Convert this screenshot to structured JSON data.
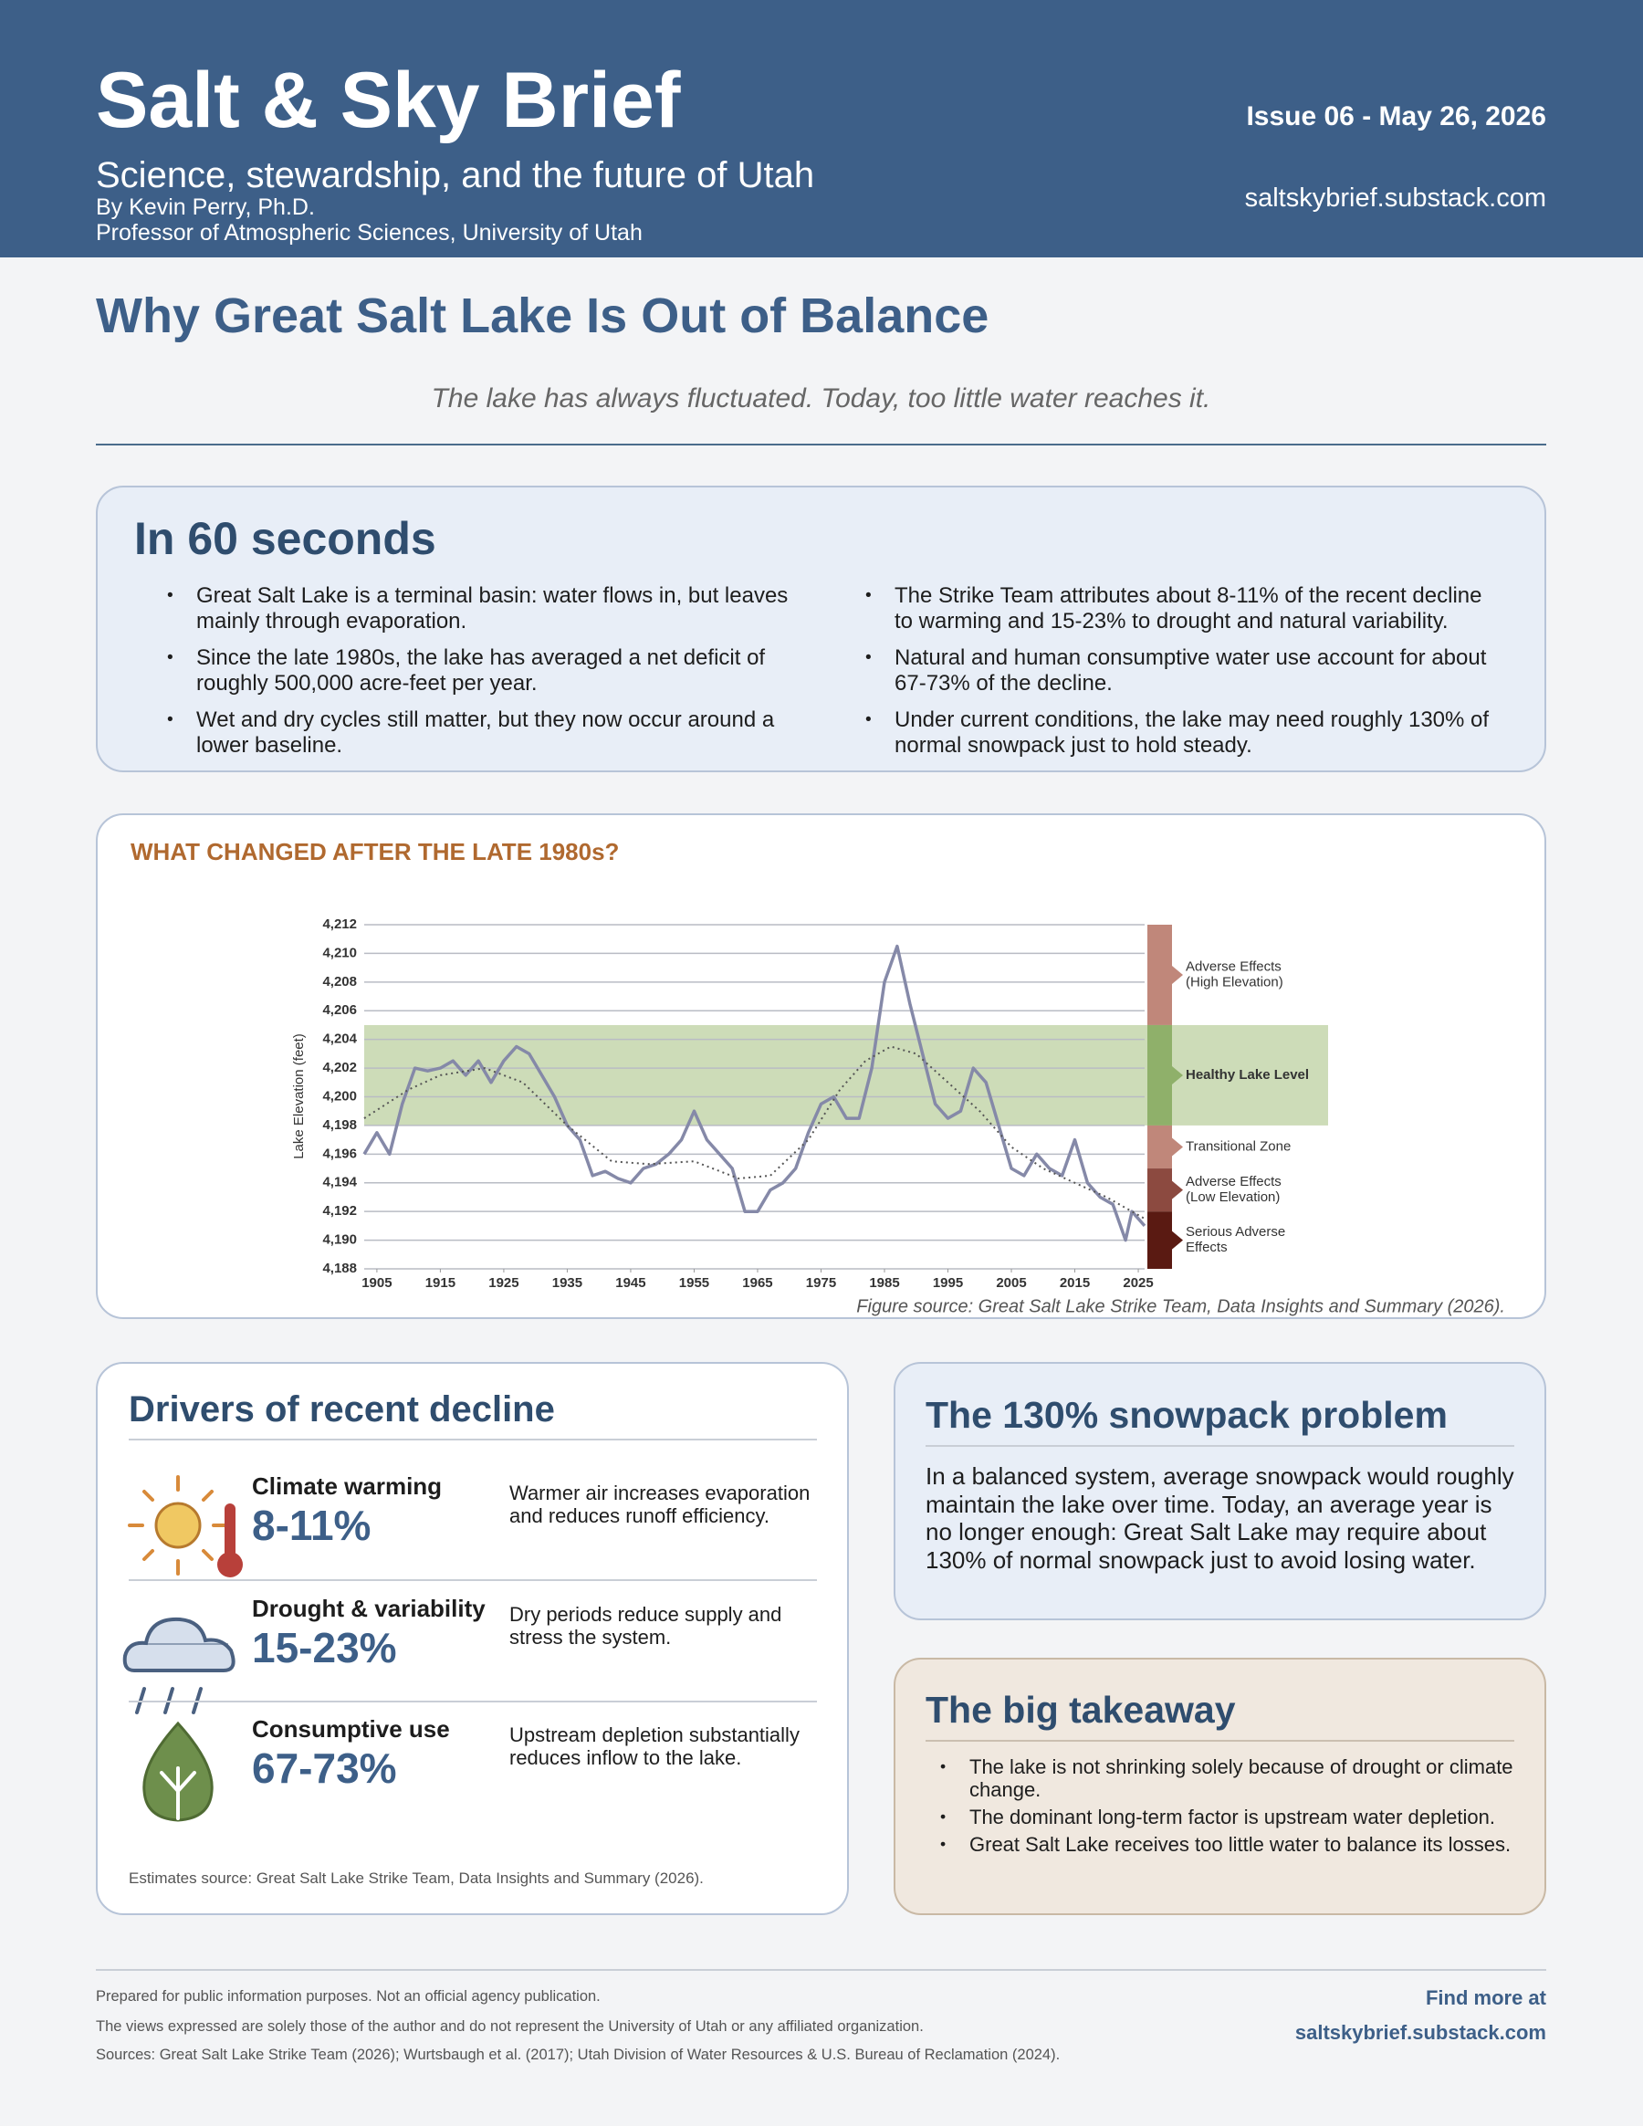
{
  "header": {
    "title": "Salt & Sky Brief",
    "subtitle": "Science, stewardship, and the future of Utah",
    "byline": "By Kevin Perry, Ph.D.",
    "affiliation": "Professor of Atmospheric Sciences, University of Utah",
    "issue": "Issue 06 - May 26, 2026",
    "url": "saltskybrief.substack.com"
  },
  "headline": "Why Great Salt Lake Is Out of Balance",
  "tagline": "The lake has always fluctuated. Today, too little water reaches it.",
  "summary": {
    "title": "In 60 seconds",
    "bullets": [
      "Great Salt Lake is a terminal basin: water flows in, but leaves mainly through evaporation.",
      "Since the late 1980s, the lake has averaged a net deficit of roughly 500,000 acre-feet per year.",
      "Wet and dry cycles still matter, but they now occur around a lower baseline.",
      "The Strike Team attributes about 8-11% of the recent decline to warming and 15-23% to drought and natural variability.",
      "Natural and human consumptive water use account for about 67-73% of the decline.",
      "Under current conditions, the lake may need roughly 130% of normal snowpack just to hold steady."
    ]
  },
  "figure": {
    "type": "line",
    "title": "WHAT CHANGED AFTER THE LATE 1980s?",
    "ylabel": "Lake Elevation (feet)",
    "source": "Figure source: Great Salt Lake Strike Team, Data Insights and Summary (2026).",
    "xlim": [
      1903,
      2026
    ],
    "ylim": [
      4188,
      4212
    ],
    "xticks": [
      1905,
      1915,
      1925,
      1935,
      1945,
      1955,
      1965,
      1975,
      1985,
      1995,
      2005,
      2015,
      2025
    ],
    "yticks": [
      {
        "value": 4188,
        "label": "4,188"
      },
      {
        "value": 4190,
        "label": "4,190"
      },
      {
        "value": 4192,
        "label": "4,192"
      },
      {
        "value": 4194,
        "label": "4,194"
      },
      {
        "value": 4196,
        "label": "4,196"
      },
      {
        "value": 4198,
        "label": "4,198"
      },
      {
        "value": 4200,
        "label": "4,200"
      },
      {
        "value": 4202,
        "label": "4,202"
      },
      {
        "value": 4204,
        "label": "4,204"
      },
      {
        "value": 4206,
        "label": "4,206"
      },
      {
        "value": 4208,
        "label": "4,208"
      },
      {
        "value": 4210,
        "label": "4,210"
      },
      {
        "value": 4212,
        "label": "4,212"
      }
    ],
    "grid": true,
    "series": [
      {
        "color": "#8589a8",
        "style": "solid",
        "x": [
          1903,
          1905,
          1907,
          1909,
          1911,
          1913,
          1915,
          1917,
          1919,
          1921,
          1923,
          1925,
          1927,
          1929,
          1931,
          1933,
          1935,
          1937,
          1939,
          1941,
          1943,
          1945,
          1947,
          1949,
          1951,
          1953,
          1955,
          1957,
          1959,
          1961,
          1963,
          1965,
          1967,
          1969,
          1971,
          1973,
          1975,
          1977,
          1979,
          1981,
          1983,
          1985,
          1987,
          1989,
          1991,
          1993,
          1995,
          1997,
          1999,
          2001,
          2003,
          2005,
          2007,
          2009,
          2011,
          2013,
          2015,
          2017,
          2019,
          2021,
          2023,
          2024,
          2026
        ],
        "values": [
          4196,
          4197.5,
          4196,
          4199.5,
          4202,
          4201.8,
          4202,
          4202.5,
          4201.5,
          4202.5,
          4201,
          4202.5,
          4203.5,
          4203,
          4201.5,
          4200,
          4198,
          4197,
          4194.5,
          4194.8,
          4194.3,
          4194,
          4195,
          4195.3,
          4196,
          4197,
          4199,
          4197,
          4196,
          4195,
          4192,
          4192,
          4193.5,
          4194,
          4195,
          4197.5,
          4199.5,
          4200,
          4198.5,
          4198.5,
          4202,
          4208,
          4210.5,
          4206.5,
          4203,
          4199.5,
          4198.5,
          4199,
          4202,
          4201,
          4198,
          4195,
          4194.5,
          4196,
          4195,
          4194.5,
          4197,
          4194,
          4193,
          4192.5,
          4190,
          4192,
          4191
        ]
      },
      {
        "color": "#555555",
        "style": "dotted",
        "x": [
          1903,
          1910,
          1915,
          1922,
          1928,
          1935,
          1942,
          1948,
          1955,
          1962,
          1967,
          1973,
          1978,
          1982,
          1986,
          1990,
          1995,
          2000,
          2005,
          2010,
          2015,
          2020,
          2026
        ],
        "values": [
          4198.5,
          4200.5,
          4201.5,
          4202,
          4201,
          4198,
          4195.5,
          4195.3,
          4195.5,
          4194.3,
          4194.5,
          4197,
          4200.5,
          4202.5,
          4203.5,
          4203,
          4201,
          4199,
          4196.5,
          4195,
          4194,
          4193,
          4191.5
        ]
      }
    ],
    "zones": [
      {
        "label": [
          "Adverse Effects",
          "(High Elevation)"
        ],
        "range": [
          4205,
          4212
        ],
        "color": "#c0877a",
        "bold": false
      },
      {
        "label": [
          "Healthy Lake Level"
        ],
        "range": [
          4198,
          4205
        ],
        "color": "#8fb06a",
        "band_color": "#cddcb8",
        "bold": true
      },
      {
        "label": [
          "Transitional Zone"
        ],
        "range": [
          4195,
          4198
        ],
        "color": "#c0877a",
        "bold": false
      },
      {
        "label": [
          "Adverse Effects",
          "(Low Elevation)"
        ],
        "range": [
          4192,
          4195
        ],
        "color": "#8c4a40",
        "bold": false
      },
      {
        "label": [
          "Serious Adverse",
          "Effects"
        ],
        "range": [
          4188,
          4192
        ],
        "color": "#5a1a12",
        "bold": false
      }
    ]
  },
  "drivers": {
    "title": "Drivers of recent decline",
    "items": [
      {
        "name": "Climate warming",
        "value": "8-11%",
        "description": "Warmer air increases evaporation and reduces runoff efficiency."
      },
      {
        "name": "Drought & variability",
        "value": "15-23%",
        "description": "Dry periods reduce supply and stress the system."
      },
      {
        "name": "Consumptive use",
        "value": "67-73%",
        "description": "Upstream depletion substantially reduces inflow to the lake."
      }
    ],
    "source": "Estimates source: Great Salt Lake Strike Team, Data Insights and Summary (2026)."
  },
  "snowpack": {
    "title": "The 130% snowpack problem",
    "text": "In a balanced system, average snowpack would roughly maintain the lake over time. Today, an average year is no longer enough: Great Salt Lake may require about 130% of normal snowpack just to avoid losing water."
  },
  "takeaway": {
    "title": "The big takeaway",
    "bullets": [
      "The lake is not shrinking solely because of drought or climate change.",
      "The dominant long-term factor is upstream water depletion.",
      "Great Salt Lake receives too little water to balance its losses."
    ]
  },
  "footer": {
    "lines": [
      "Prepared for public information purposes. Not an official agency publication.",
      "The views expressed are solely those of the author and do not represent the University of Utah or any affiliated organization.",
      "Sources: Great Salt Lake Strike Team (2026); Wurtsbaugh et al. (2017); Utah Division of Water Resources & U.S. Bureau of Reclamation (2024)."
    ],
    "find_more": "Find more at",
    "url": "saltskybrief.substack.com"
  }
}
